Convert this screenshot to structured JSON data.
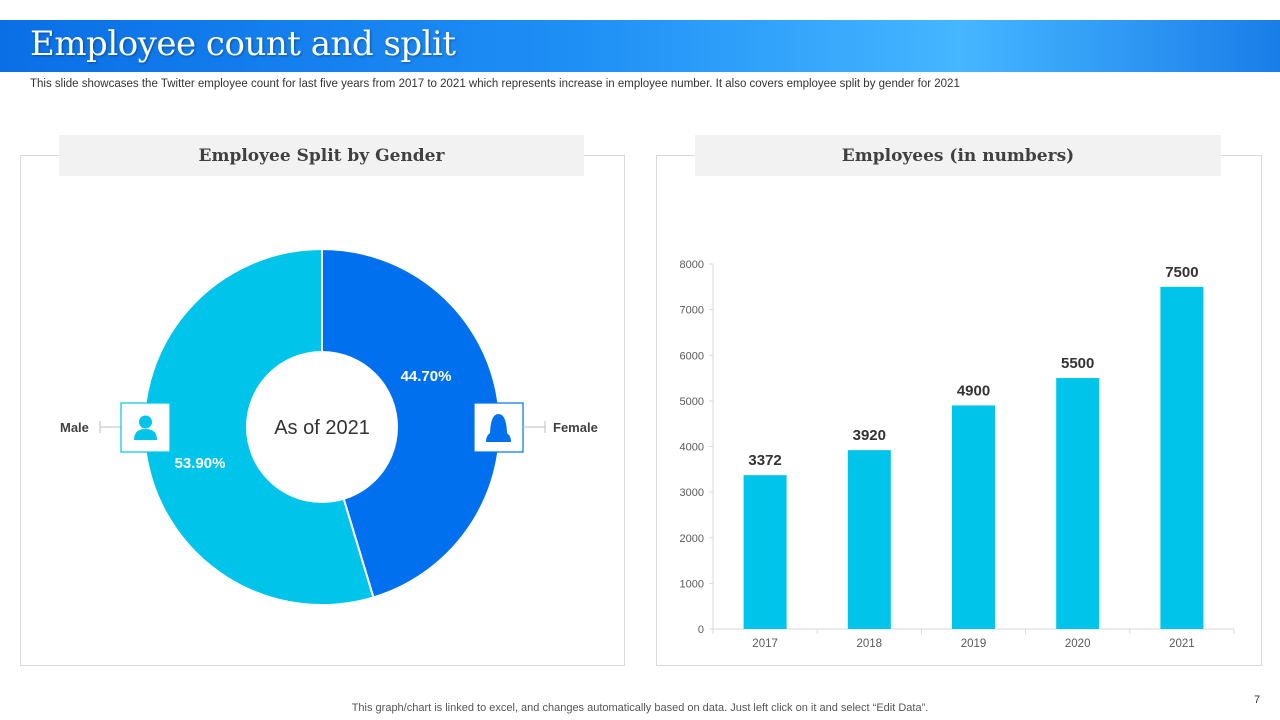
{
  "title": "Employee count and split",
  "subtitle": "This slide showcases the Twitter employee count for last five years from 2017 to 2021 which represents increase in employee number. It also covers employee split by gender for 2021",
  "footer": "This graph/chart is linked to excel,  and changes automatically based on data. Just left click on it and select “Edit Data”.",
  "page_number": "7",
  "colors": {
    "male": "#00c4ea",
    "female": "#0070ee",
    "bar": "#00c4ea"
  },
  "icons": {
    "male": "male-user-icon",
    "female": "female-user-icon"
  },
  "chart_data": [
    {
      "type": "pie",
      "title": "Employee Split by Gender",
      "center_label": "As of 2021",
      "slices": [
        {
          "name": "Female",
          "value": 44.7,
          "label": "44.70%"
        },
        {
          "name": "Male",
          "value": 53.9,
          "label": "53.90%"
        }
      ]
    },
    {
      "type": "bar",
      "title": "Employees (in numbers)",
      "categories": [
        "2017",
        "2018",
        "2019",
        "2020",
        "2021"
      ],
      "values": [
        3372,
        3920,
        4900,
        5500,
        7500
      ],
      "ylim": [
        0,
        8000
      ],
      "yticks": [
        "0",
        "1000",
        "2000",
        "3000",
        "4000",
        "5000",
        "6000",
        "7000",
        "8000"
      ],
      "xlabel": "",
      "ylabel": ""
    }
  ]
}
